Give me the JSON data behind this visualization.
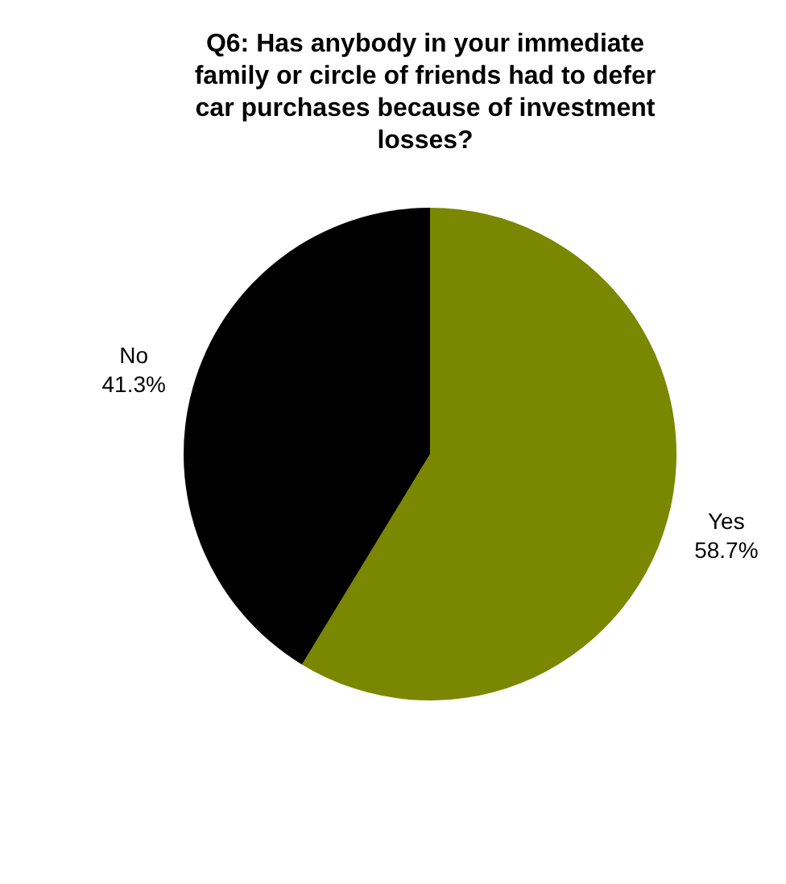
{
  "chart_data": {
    "type": "pie",
    "title": "Q6: Has anybody in your immediate family or circle of friends had to defer car purchases because of investment losses?",
    "categories": [
      "Yes",
      "No"
    ],
    "values": [
      58.7,
      41.3
    ],
    "colors": [
      "#7a8700",
      "#000000"
    ],
    "value_labels": [
      "58.7%",
      "41.3%"
    ],
    "legend": false
  }
}
